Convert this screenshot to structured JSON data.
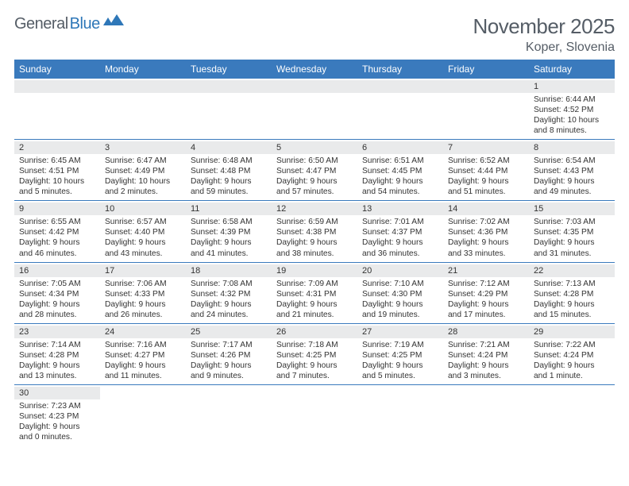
{
  "brand": {
    "word1": "General",
    "word2": "Blue"
  },
  "title": "November 2025",
  "location": "Koper, Slovenia",
  "colors": {
    "header_bg": "#3a7abd",
    "header_text": "#ffffff",
    "text": "#555d66",
    "daynum_bg": "#e9eaeb",
    "rule": "#3a7abd"
  },
  "day_names": [
    "Sunday",
    "Monday",
    "Tuesday",
    "Wednesday",
    "Thursday",
    "Friday",
    "Saturday"
  ],
  "weeks": [
    [
      null,
      null,
      null,
      null,
      null,
      null,
      {
        "n": "1",
        "sunrise": "6:44 AM",
        "sunset": "4:52 PM",
        "day_h": "10",
        "day_m": "8"
      }
    ],
    [
      {
        "n": "2",
        "sunrise": "6:45 AM",
        "sunset": "4:51 PM",
        "day_h": "10",
        "day_m": "5"
      },
      {
        "n": "3",
        "sunrise": "6:47 AM",
        "sunset": "4:49 PM",
        "day_h": "10",
        "day_m": "2"
      },
      {
        "n": "4",
        "sunrise": "6:48 AM",
        "sunset": "4:48 PM",
        "day_h": "9",
        "day_m": "59"
      },
      {
        "n": "5",
        "sunrise": "6:50 AM",
        "sunset": "4:47 PM",
        "day_h": "9",
        "day_m": "57"
      },
      {
        "n": "6",
        "sunrise": "6:51 AM",
        "sunset": "4:45 PM",
        "day_h": "9",
        "day_m": "54"
      },
      {
        "n": "7",
        "sunrise": "6:52 AM",
        "sunset": "4:44 PM",
        "day_h": "9",
        "day_m": "51"
      },
      {
        "n": "8",
        "sunrise": "6:54 AM",
        "sunset": "4:43 PM",
        "day_h": "9",
        "day_m": "49"
      }
    ],
    [
      {
        "n": "9",
        "sunrise": "6:55 AM",
        "sunset": "4:42 PM",
        "day_h": "9",
        "day_m": "46"
      },
      {
        "n": "10",
        "sunrise": "6:57 AM",
        "sunset": "4:40 PM",
        "day_h": "9",
        "day_m": "43"
      },
      {
        "n": "11",
        "sunrise": "6:58 AM",
        "sunset": "4:39 PM",
        "day_h": "9",
        "day_m": "41"
      },
      {
        "n": "12",
        "sunrise": "6:59 AM",
        "sunset": "4:38 PM",
        "day_h": "9",
        "day_m": "38"
      },
      {
        "n": "13",
        "sunrise": "7:01 AM",
        "sunset": "4:37 PM",
        "day_h": "9",
        "day_m": "36"
      },
      {
        "n": "14",
        "sunrise": "7:02 AM",
        "sunset": "4:36 PM",
        "day_h": "9",
        "day_m": "33"
      },
      {
        "n": "15",
        "sunrise": "7:03 AM",
        "sunset": "4:35 PM",
        "day_h": "9",
        "day_m": "31"
      }
    ],
    [
      {
        "n": "16",
        "sunrise": "7:05 AM",
        "sunset": "4:34 PM",
        "day_h": "9",
        "day_m": "28"
      },
      {
        "n": "17",
        "sunrise": "7:06 AM",
        "sunset": "4:33 PM",
        "day_h": "9",
        "day_m": "26"
      },
      {
        "n": "18",
        "sunrise": "7:08 AM",
        "sunset": "4:32 PM",
        "day_h": "9",
        "day_m": "24"
      },
      {
        "n": "19",
        "sunrise": "7:09 AM",
        "sunset": "4:31 PM",
        "day_h": "9",
        "day_m": "21"
      },
      {
        "n": "20",
        "sunrise": "7:10 AM",
        "sunset": "4:30 PM",
        "day_h": "9",
        "day_m": "19"
      },
      {
        "n": "21",
        "sunrise": "7:12 AM",
        "sunset": "4:29 PM",
        "day_h": "9",
        "day_m": "17"
      },
      {
        "n": "22",
        "sunrise": "7:13 AM",
        "sunset": "4:28 PM",
        "day_h": "9",
        "day_m": "15"
      }
    ],
    [
      {
        "n": "23",
        "sunrise": "7:14 AM",
        "sunset": "4:28 PM",
        "day_h": "9",
        "day_m": "13"
      },
      {
        "n": "24",
        "sunrise": "7:16 AM",
        "sunset": "4:27 PM",
        "day_h": "9",
        "day_m": "11"
      },
      {
        "n": "25",
        "sunrise": "7:17 AM",
        "sunset": "4:26 PM",
        "day_h": "9",
        "day_m": "9"
      },
      {
        "n": "26",
        "sunrise": "7:18 AM",
        "sunset": "4:25 PM",
        "day_h": "9",
        "day_m": "7"
      },
      {
        "n": "27",
        "sunrise": "7:19 AM",
        "sunset": "4:25 PM",
        "day_h": "9",
        "day_m": "5"
      },
      {
        "n": "28",
        "sunrise": "7:21 AM",
        "sunset": "4:24 PM",
        "day_h": "9",
        "day_m": "3"
      },
      {
        "n": "29",
        "sunrise": "7:22 AM",
        "sunset": "4:24 PM",
        "day_h": "9",
        "day_m": "1"
      }
    ],
    [
      {
        "n": "30",
        "sunrise": "7:23 AM",
        "sunset": "4:23 PM",
        "day_h": "9",
        "day_m": "0"
      },
      null,
      null,
      null,
      null,
      null,
      null
    ]
  ],
  "labels": {
    "sunrise": "Sunrise:",
    "sunset": "Sunset:",
    "daylight": "Daylight:",
    "hours": "hours",
    "and": "and",
    "minutes_singular": "minute.",
    "minutes_plural": "minutes."
  }
}
